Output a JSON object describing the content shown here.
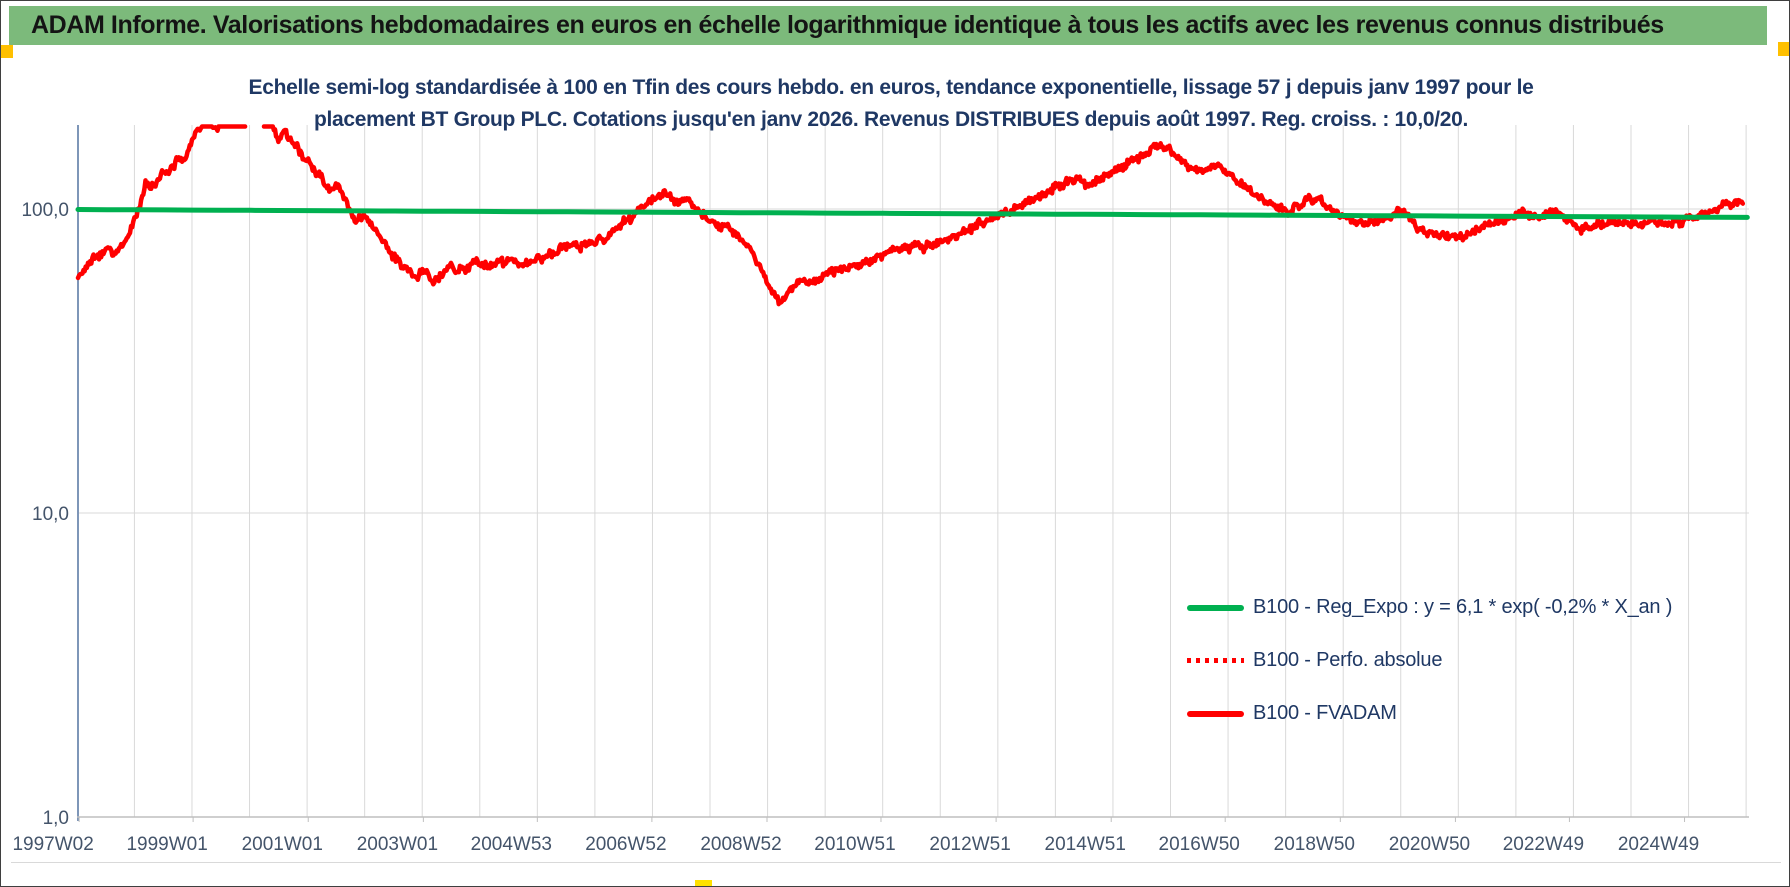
{
  "banner": {
    "title": "ADAM Informe. Valorisations hebdomadaires en euros en échelle logarithmique identique à tous les actifs avec les revenus connus distribués"
  },
  "chart_data": {
    "type": "line",
    "title_lines": [
      "Echelle semi-log standardisée à 100 en Tfin des cours hebdo. en euros, tendance exponentielle, lissage 57 j depuis janv 1997 pour le",
      "placement BT Group PLC. Cotations jusqu'en janv 2026. Revenus DISTRIBUES depuis août 1997. Reg. croiss. : 10,0/20."
    ],
    "y_axis": {
      "scale": "log10",
      "min": 1.0,
      "max": 189,
      "gap_above": 200,
      "ticks": [
        {
          "v": 100,
          "label": "100,0"
        },
        {
          "v": 10,
          "label": "10,0"
        },
        {
          "v": 1,
          "label": "1,0"
        }
      ]
    },
    "x_axis": {
      "min": 1997.02,
      "max": 2026.05,
      "grid_year_start": 1998,
      "grid_year_end": 2026,
      "ticks": [
        {
          "t": 1997.04,
          "label": "1997W02"
        },
        {
          "t": 1999.02,
          "label": "1999W01"
        },
        {
          "t": 2001.02,
          "label": "2001W01"
        },
        {
          "t": 2003.02,
          "label": "2003W01"
        },
        {
          "t": 2005.0,
          "label": "2004W53"
        },
        {
          "t": 2006.99,
          "label": "2006W52"
        },
        {
          "t": 2008.99,
          "label": "2008W52"
        },
        {
          "t": 2010.97,
          "label": "2010W51"
        },
        {
          "t": 2012.97,
          "label": "2012W51"
        },
        {
          "t": 2014.97,
          "label": "2014W51"
        },
        {
          "t": 2016.95,
          "label": "2016W50"
        },
        {
          "t": 2018.95,
          "label": "2018W50"
        },
        {
          "t": 2020.95,
          "label": "2020W50"
        },
        {
          "t": 2022.93,
          "label": "2022W49"
        },
        {
          "t": 2024.93,
          "label": "2024W49"
        }
      ]
    },
    "legend": [
      {
        "label": "B100 - Reg_Expo : y = 6,1 * exp( -0,2% *  X_an )",
        "color": "#00B050",
        "dash": "solid"
      },
      {
        "label": "B100 - Perfo. absolue",
        "color": "#FF0000",
        "dash": "dotted"
      },
      {
        "label": "B100 - FVADAM",
        "color": "#FF0000",
        "dash": "solid"
      }
    ],
    "series": [
      {
        "name": "B100 - Reg_Expo",
        "color": "#00B050",
        "dash": "solid",
        "width": 5,
        "kind": "exp",
        "points": [
          [
            1997.02,
            99.6
          ],
          [
            2026.05,
            93.8
          ]
        ]
      },
      {
        "name": "B100 - Perfo. absolue",
        "color": "#FF0000",
        "dash": "dotted",
        "width": 4,
        "kind": "weekly",
        "anchors": "fvadam_anchors"
      },
      {
        "name": "B100 - FVADAM",
        "color": "#FF0000",
        "dash": "solid",
        "width": 4.5,
        "kind": "weekly",
        "anchors": "fvadam_anchors"
      }
    ],
    "fvadam_anchors": [
      [
        1997.02,
        58
      ],
      [
        1997.1,
        62
      ],
      [
        1997.25,
        66
      ],
      [
        1997.4,
        70
      ],
      [
        1997.55,
        74
      ],
      [
        1997.65,
        71
      ],
      [
        1997.8,
        78
      ],
      [
        1997.95,
        88
      ],
      [
        1998.1,
        105
      ],
      [
        1998.2,
        122
      ],
      [
        1998.35,
        117
      ],
      [
        1998.5,
        132
      ],
      [
        1998.6,
        126
      ],
      [
        1998.75,
        148
      ],
      [
        1998.85,
        142
      ],
      [
        1999.0,
        170
      ],
      [
        1999.1,
        183
      ],
      [
        1999.2,
        192
      ],
      [
        1999.3,
        197
      ],
      [
        1999.45,
        186
      ],
      [
        1999.6,
        199
      ],
      [
        1999.75,
        193
      ],
      [
        1999.9,
        196
      ],
      [
        2000.0,
        208
      ],
      [
        2000.1,
        216
      ],
      [
        2000.18,
        207
      ],
      [
        2000.28,
        196
      ],
      [
        2000.38,
        189
      ],
      [
        2000.5,
        173
      ],
      [
        2000.62,
        181
      ],
      [
        2000.75,
        168
      ],
      [
        2000.88,
        155
      ],
      [
        2001.0,
        143
      ],
      [
        2001.15,
        132
      ],
      [
        2001.3,
        121
      ],
      [
        2001.45,
        113
      ],
      [
        2001.55,
        119
      ],
      [
        2001.7,
        101
      ],
      [
        2001.85,
        91
      ],
      [
        2002.0,
        96
      ],
      [
        2002.15,
        89
      ],
      [
        2002.3,
        80
      ],
      [
        2002.45,
        72
      ],
      [
        2002.6,
        66
      ],
      [
        2002.75,
        62
      ],
      [
        2002.9,
        59
      ],
      [
        2003.05,
        63
      ],
      [
        2003.2,
        57
      ],
      [
        2003.35,
        62
      ],
      [
        2003.5,
        66
      ],
      [
        2003.65,
        63
      ],
      [
        2003.8,
        65
      ],
      [
        2003.95,
        67
      ],
      [
        2004.15,
        64
      ],
      [
        2004.35,
        66
      ],
      [
        2004.55,
        68
      ],
      [
        2004.75,
        66
      ],
      [
        2004.95,
        69
      ],
      [
        2005.15,
        71
      ],
      [
        2005.35,
        73
      ],
      [
        2005.55,
        76
      ],
      [
        2005.75,
        74
      ],
      [
        2005.95,
        78
      ],
      [
        2006.15,
        80
      ],
      [
        2006.35,
        86
      ],
      [
        2006.55,
        93
      ],
      [
        2006.75,
        98
      ],
      [
        2006.95,
        104
      ],
      [
        2007.1,
        109
      ],
      [
        2007.25,
        112
      ],
      [
        2007.4,
        104
      ],
      [
        2007.55,
        109
      ],
      [
        2007.7,
        105
      ],
      [
        2007.85,
        98
      ],
      [
        2008.0,
        92
      ],
      [
        2008.15,
        88
      ],
      [
        2008.3,
        86
      ],
      [
        2008.45,
        83
      ],
      [
        2008.6,
        76
      ],
      [
        2008.75,
        70
      ],
      [
        2008.9,
        63
      ],
      [
        2009.05,
        56
      ],
      [
        2009.2,
        50
      ],
      [
        2009.35,
        53
      ],
      [
        2009.5,
        57
      ],
      [
        2009.65,
        59
      ],
      [
        2009.8,
        56
      ],
      [
        2009.95,
        59
      ],
      [
        2010.15,
        62
      ],
      [
        2010.35,
        64
      ],
      [
        2010.55,
        66
      ],
      [
        2010.75,
        68
      ],
      [
        2010.95,
        70
      ],
      [
        2011.15,
        72
      ],
      [
        2011.35,
        73
      ],
      [
        2011.55,
        75
      ],
      [
        2011.75,
        75
      ],
      [
        2011.95,
        78
      ],
      [
        2012.15,
        81
      ],
      [
        2012.35,
        84
      ],
      [
        2012.55,
        86
      ],
      [
        2012.75,
        89
      ],
      [
        2012.95,
        93
      ],
      [
        2013.15,
        97
      ],
      [
        2013.35,
        103
      ],
      [
        2013.55,
        108
      ],
      [
        2013.75,
        111
      ],
      [
        2013.95,
        115
      ],
      [
        2014.15,
        120
      ],
      [
        2014.35,
        124
      ],
      [
        2014.55,
        121
      ],
      [
        2014.75,
        126
      ],
      [
        2014.95,
        131
      ],
      [
        2015.1,
        136
      ],
      [
        2015.25,
        141
      ],
      [
        2015.4,
        146
      ],
      [
        2015.55,
        150
      ],
      [
        2015.7,
        156
      ],
      [
        2015.85,
        161
      ],
      [
        2016.0,
        154
      ],
      [
        2016.15,
        149
      ],
      [
        2016.3,
        141
      ],
      [
        2016.45,
        136
      ],
      [
        2016.6,
        133
      ],
      [
        2016.75,
        139
      ],
      [
        2016.9,
        133
      ],
      [
        2017.05,
        127
      ],
      [
        2017.2,
        121
      ],
      [
        2017.35,
        117
      ],
      [
        2017.5,
        111
      ],
      [
        2017.65,
        108
      ],
      [
        2017.8,
        104
      ],
      [
        2017.95,
        101
      ],
      [
        2018.1,
        98
      ],
      [
        2018.25,
        102
      ],
      [
        2018.4,
        106
      ],
      [
        2018.55,
        108
      ],
      [
        2018.7,
        103
      ],
      [
        2018.85,
        99
      ],
      [
        2019.0,
        95
      ],
      [
        2019.2,
        92
      ],
      [
        2019.4,
        90
      ],
      [
        2019.6,
        91
      ],
      [
        2019.8,
        93
      ],
      [
        2020.0,
        98
      ],
      [
        2020.15,
        93
      ],
      [
        2020.3,
        87
      ],
      [
        2020.45,
        85
      ],
      [
        2020.6,
        84
      ],
      [
        2020.75,
        83
      ],
      [
        2020.9,
        81
      ],
      [
        2021.05,
        80
      ],
      [
        2021.2,
        82
      ],
      [
        2021.35,
        85
      ],
      [
        2021.5,
        88
      ],
      [
        2021.65,
        91
      ],
      [
        2021.8,
        93
      ],
      [
        2021.95,
        96
      ],
      [
        2022.1,
        99
      ],
      [
        2022.25,
        96
      ],
      [
        2022.4,
        93
      ],
      [
        2022.55,
        95
      ],
      [
        2022.7,
        97
      ],
      [
        2022.85,
        92
      ],
      [
        2023.0,
        88
      ],
      [
        2023.15,
        86
      ],
      [
        2023.3,
        88
      ],
      [
        2023.45,
        90
      ],
      [
        2023.6,
        92
      ],
      [
        2023.75,
        91
      ],
      [
        2023.9,
        89
      ],
      [
        2024.05,
        88
      ],
      [
        2024.2,
        89
      ],
      [
        2024.35,
        90
      ],
      [
        2024.5,
        90
      ],
      [
        2024.65,
        91
      ],
      [
        2024.8,
        92
      ],
      [
        2024.95,
        93
      ],
      [
        2025.1,
        95
      ],
      [
        2025.25,
        96
      ],
      [
        2025.4,
        98
      ],
      [
        2025.55,
        100
      ],
      [
        2025.7,
        103
      ],
      [
        2025.85,
        105
      ],
      [
        2025.95,
        104
      ]
    ],
    "colors": {
      "grid": "#D9D9D9",
      "spine": "#7E96B8",
      "axis_line": "#BFBFBF",
      "axis_text": "#44546A",
      "title_text": "#1F3864",
      "red": "#FF0000",
      "green": "#00B050"
    }
  },
  "decorations": {
    "banner_bg": "#7CBA7B",
    "left_marker_color": "#FFC000",
    "right_marker_color": "#FFC000",
    "bottom_marker_color": "#FFE100"
  }
}
